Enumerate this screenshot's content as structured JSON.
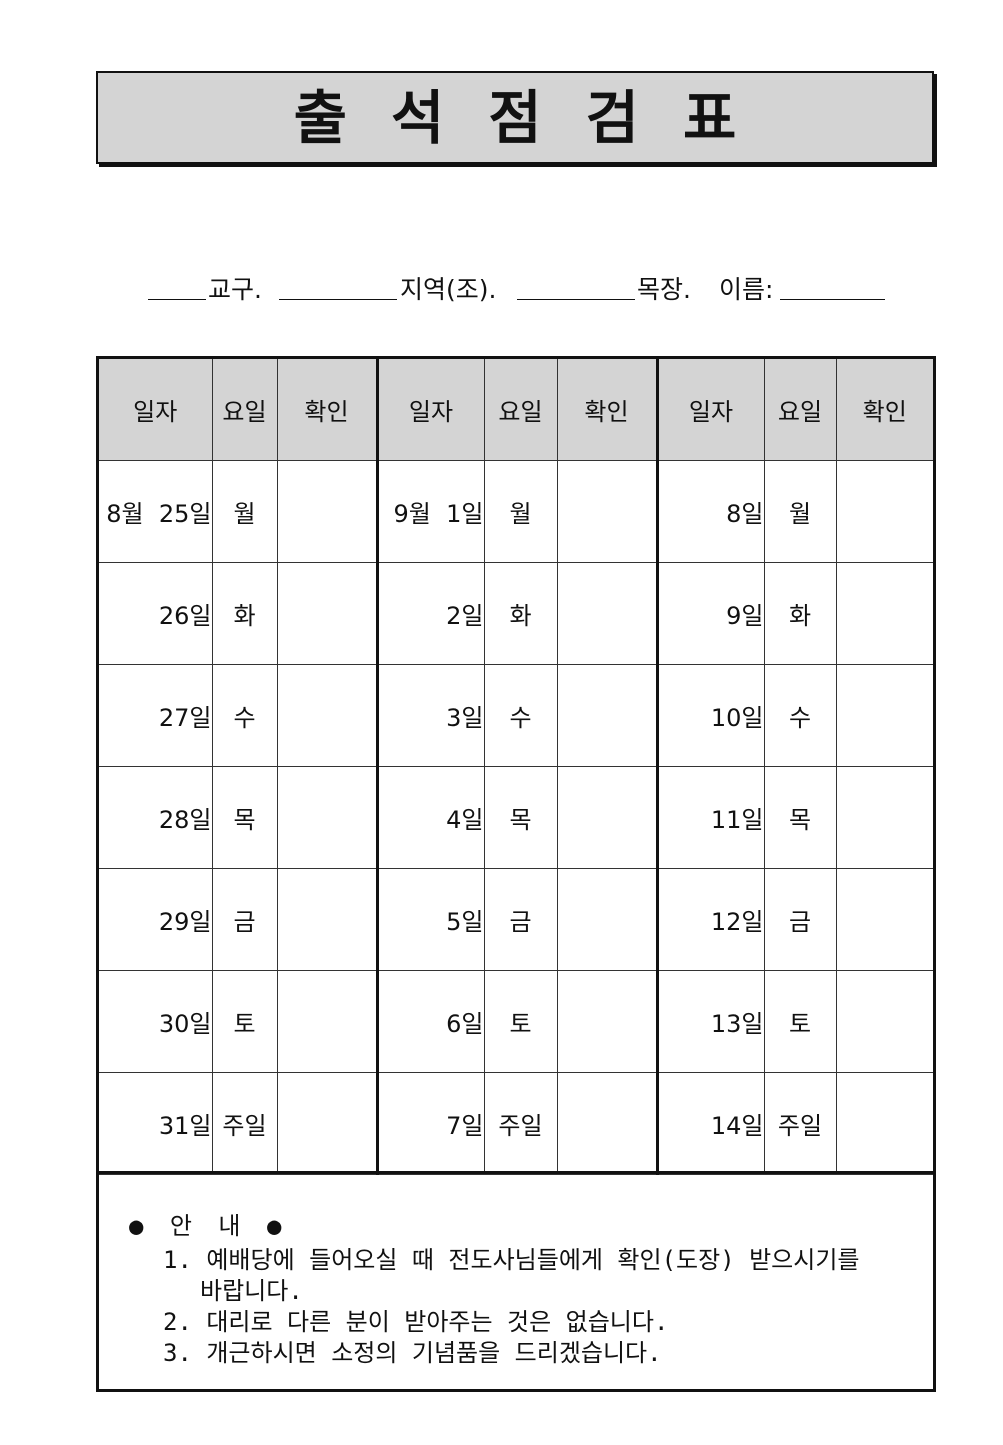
{
  "title": "출석점검표",
  "info": {
    "district_label": "교구.",
    "area_label": "지역(조).",
    "leader_label": "목장.",
    "name_label": "이름:"
  },
  "table": {
    "headers": [
      "일자",
      "요일",
      "확인",
      "일자",
      "요일",
      "확인",
      "일자",
      "요일",
      "확인"
    ],
    "rows": [
      [
        {
          "date": "8월  25일",
          "day": "월"
        },
        {
          "date": "9월  1일",
          "day": "월"
        },
        {
          "date": "8일",
          "day": "월"
        }
      ],
      [
        {
          "date": "26일",
          "day": "화"
        },
        {
          "date": "2일",
          "day": "화"
        },
        {
          "date": "9일",
          "day": "화"
        }
      ],
      [
        {
          "date": "27일",
          "day": "수"
        },
        {
          "date": "3일",
          "day": "수"
        },
        {
          "date": "10일",
          "day": "수"
        }
      ],
      [
        {
          "date": "28일",
          "day": "목"
        },
        {
          "date": "4일",
          "day": "목"
        },
        {
          "date": "11일",
          "day": "목"
        }
      ],
      [
        {
          "date": "29일",
          "day": "금"
        },
        {
          "date": "5일",
          "day": "금"
        },
        {
          "date": "12일",
          "day": "금"
        }
      ],
      [
        {
          "date": "30일",
          "day": "토"
        },
        {
          "date": "6일",
          "day": "토"
        },
        {
          "date": "13일",
          "day": "토"
        }
      ],
      [
        {
          "date": "31일",
          "day": "주일"
        },
        {
          "date": "7일",
          "day": "주일"
        },
        {
          "date": "14일",
          "day": "주일"
        }
      ]
    ]
  },
  "notice": {
    "heading": "● 안 내 ●",
    "items": [
      "1. 예배당에 들어오실 때 전도사님들에게 확인(도장) 받으시기를",
      "바랍니다.",
      "2. 대리로 다른 분이 받아주는 것은 없습니다.",
      "3. 개근하시면 소정의 기념품을 드리겠습니다."
    ]
  }
}
